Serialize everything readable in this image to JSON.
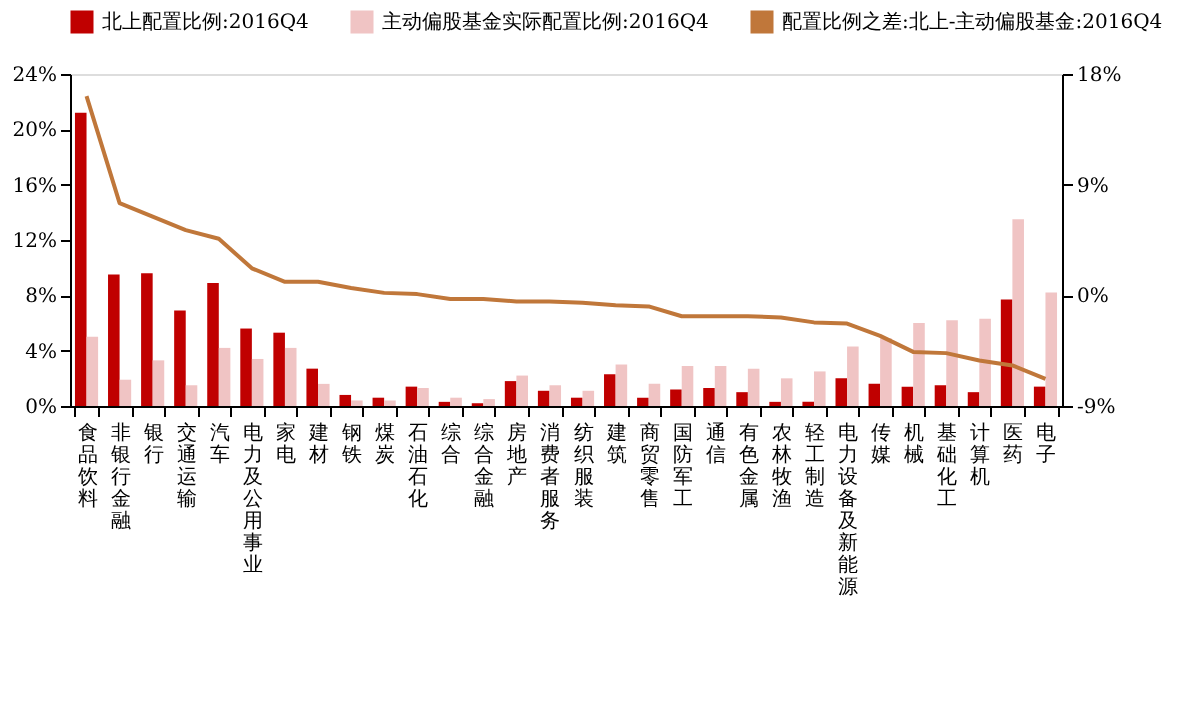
{
  "chart_data": {
    "type": "bar",
    "categories": [
      "食品饮料",
      "非银行金融",
      "银行",
      "交通运输",
      "汽车",
      "电力及公用事业",
      "家电",
      "建材",
      "钢铁",
      "煤炭",
      "石油石化",
      "综合",
      "综合金融",
      "房地产",
      "消费者服务",
      "纺织服装",
      "建筑",
      "商贸零售",
      "国防军工",
      "通信",
      "有色金属",
      "农林牧渔",
      "轻工制造",
      "电力设备及新能源",
      "传媒",
      "机械",
      "基础化工",
      "计算机",
      "医药",
      "电子"
    ],
    "series": [
      {
        "name": "北上配置比例:2016Q4",
        "color": "#c00000",
        "values": [
          21.2,
          9.5,
          9.6,
          6.9,
          8.9,
          5.6,
          5.3,
          2.7,
          0.8,
          0.6,
          1.4,
          0.3,
          0.2,
          1.8,
          1.1,
          0.6,
          2.3,
          0.6,
          1.2,
          1.3,
          1.0,
          0.3,
          0.3,
          2.0,
          1.6,
          1.4,
          1.5,
          1.0,
          7.7,
          1.4
        ]
      },
      {
        "name": "主动偏股基金实际配置比例:2016Q4",
        "color": "#f0c4c4",
        "values": [
          5.0,
          1.9,
          3.3,
          1.5,
          4.2,
          3.4,
          4.2,
          1.6,
          0.4,
          0.4,
          1.3,
          0.6,
          0.5,
          2.2,
          1.5,
          1.1,
          3.0,
          1.6,
          2.9,
          2.9,
          2.7,
          2.0,
          2.5,
          4.3,
          4.9,
          6.0,
          6.2,
          6.3,
          13.5,
          8.2
        ]
      },
      {
        "name": "配置比例之差:北上-主动偏股基金:2016Q4",
        "color": "#c0773a",
        "type": "line",
        "axis": "y2",
        "values": [
          16.2,
          7.5,
          6.4,
          5.3,
          4.6,
          2.2,
          1.1,
          1.1,
          0.6,
          0.2,
          0.1,
          -0.3,
          -0.3,
          -0.5,
          -0.5,
          -0.6,
          -0.8,
          -0.9,
          -1.7,
          -1.7,
          -1.7,
          -1.8,
          -2.2,
          -2.3,
          -3.3,
          -4.6,
          -4.7,
          -5.3,
          -5.7,
          -6.8
        ]
      }
    ],
    "ylim": [
      0,
      24
    ],
    "yticks": [
      {
        "value": 0,
        "label": "0%"
      },
      {
        "value": 4,
        "label": "4%"
      },
      {
        "value": 8,
        "label": "8%"
      },
      {
        "value": 12,
        "label": "12%"
      },
      {
        "value": 16,
        "label": "16%"
      },
      {
        "value": 20,
        "label": "20%"
      },
      {
        "value": 24,
        "label": "24%"
      }
    ],
    "y2lim": [
      -9,
      18
    ],
    "y2ticks": [
      {
        "value": -9,
        "label": "-9%"
      },
      {
        "value": 0,
        "label": "0%"
      },
      {
        "value": 9,
        "label": "9%"
      },
      {
        "value": 18,
        "label": "18%"
      }
    ],
    "legend": "top",
    "grid": false
  }
}
